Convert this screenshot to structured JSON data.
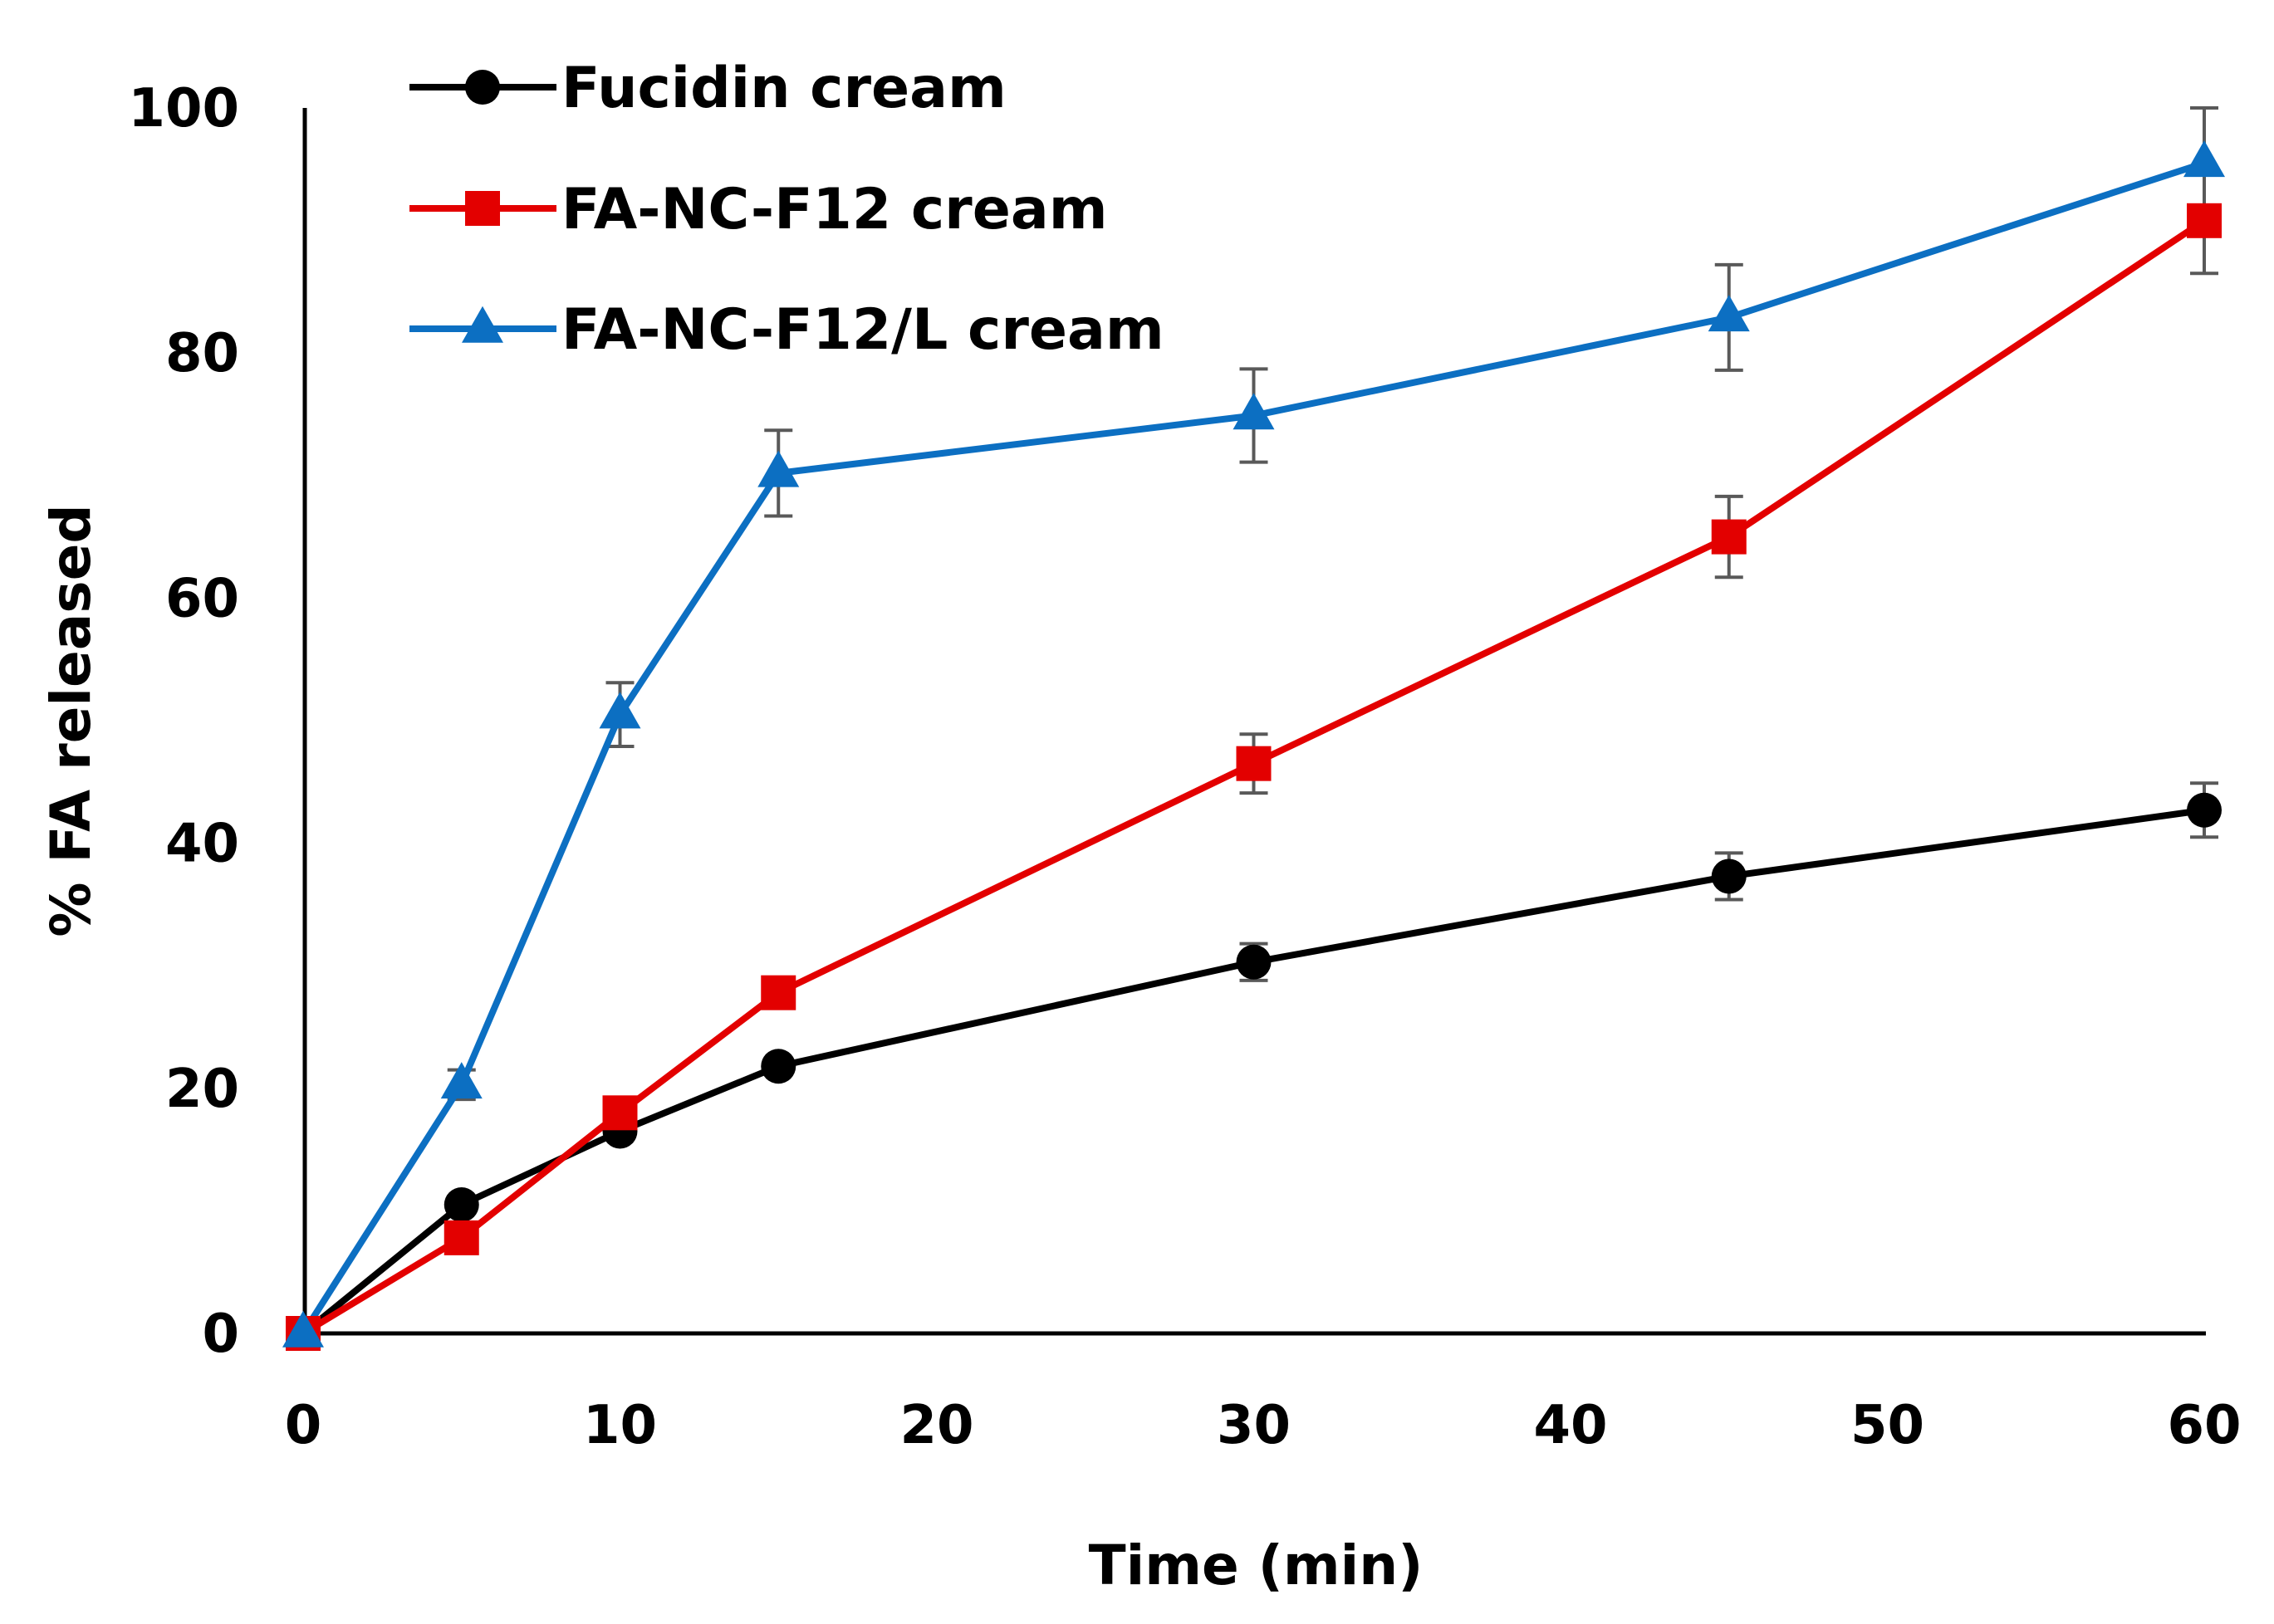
{
  "chart_data": {
    "type": "line",
    "title": "",
    "xlabel": "Time (min)",
    "ylabel": "% FA released",
    "xlim": [
      0,
      60
    ],
    "ylim": [
      0,
      100
    ],
    "xticks": [
      0,
      10,
      20,
      30,
      40,
      50,
      60
    ],
    "yticks": [
      0,
      20,
      40,
      60,
      80,
      100
    ],
    "grid": false,
    "legend_position": "top-left",
    "x": [
      0,
      5,
      10,
      15,
      30,
      45,
      60
    ],
    "series": [
      {
        "name": "Fucidin cream",
        "color": "#000000",
        "marker": "circle",
        "values": [
          0,
          10.5,
          16.5,
          21.8,
          30.3,
          37.3,
          42.7
        ],
        "errors": [
          0,
          0,
          0,
          0,
          1.5,
          1.9,
          2.2
        ]
      },
      {
        "name": "FA-NC-F12 cream",
        "color": "#e30000",
        "marker": "square",
        "values": [
          0,
          7.8,
          18.0,
          27.8,
          46.5,
          65.0,
          90.8
        ],
        "errors": [
          0,
          0,
          0,
          0,
          2.4,
          3.3,
          4.3
        ]
      },
      {
        "name": "FA-NC-F12/L cream",
        "color": "#0c6fc2",
        "marker": "triangle",
        "values": [
          0,
          20.3,
          50.5,
          70.2,
          74.9,
          82.9,
          95.5
        ],
        "errors": [
          0,
          1.2,
          2.6,
          3.5,
          3.8,
          4.3,
          4.5
        ]
      }
    ],
    "errorbar_color": "#595959"
  }
}
